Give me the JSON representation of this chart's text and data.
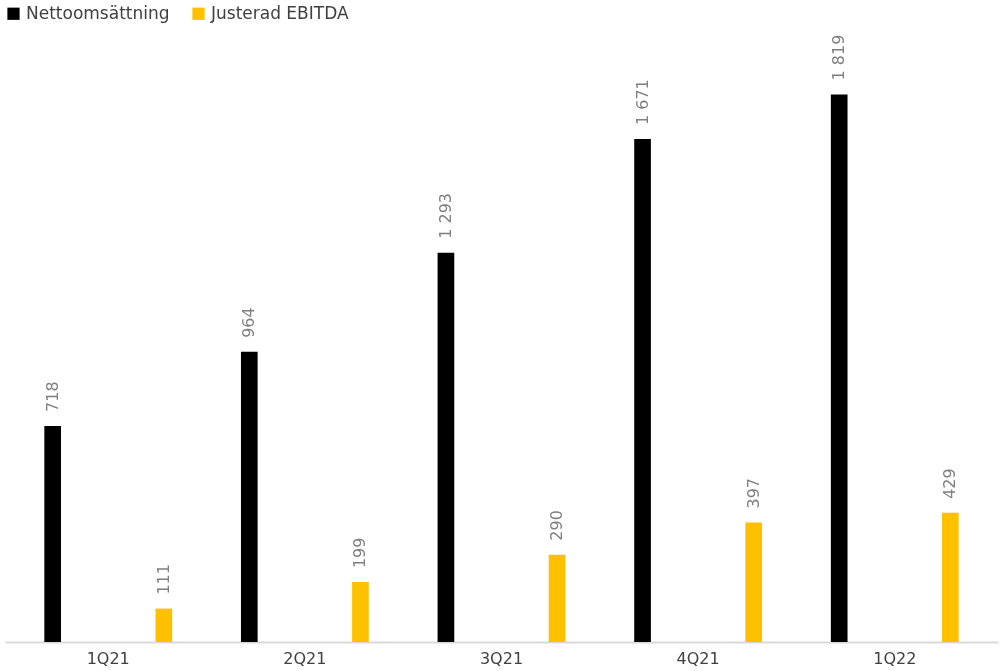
{
  "chart_data": {
    "type": "bar",
    "categories": [
      "1Q21",
      "2Q21",
      "3Q21",
      "4Q21",
      "1Q22"
    ],
    "series": [
      {
        "name": "Nettoomsättning",
        "color": "#000000",
        "values": [
          718,
          964,
          1293,
          1671,
          1819
        ],
        "value_labels": [
          "718",
          "964",
          "1 293",
          "1 671",
          "1 819"
        ]
      },
      {
        "name": "Justerad EBITDA",
        "color": "#ffc000",
        "values": [
          111,
          199,
          290,
          397,
          429
        ],
        "value_labels": [
          "111",
          "199",
          "290",
          "397",
          "429"
        ]
      }
    ],
    "legend": "top",
    "grid": false
  }
}
